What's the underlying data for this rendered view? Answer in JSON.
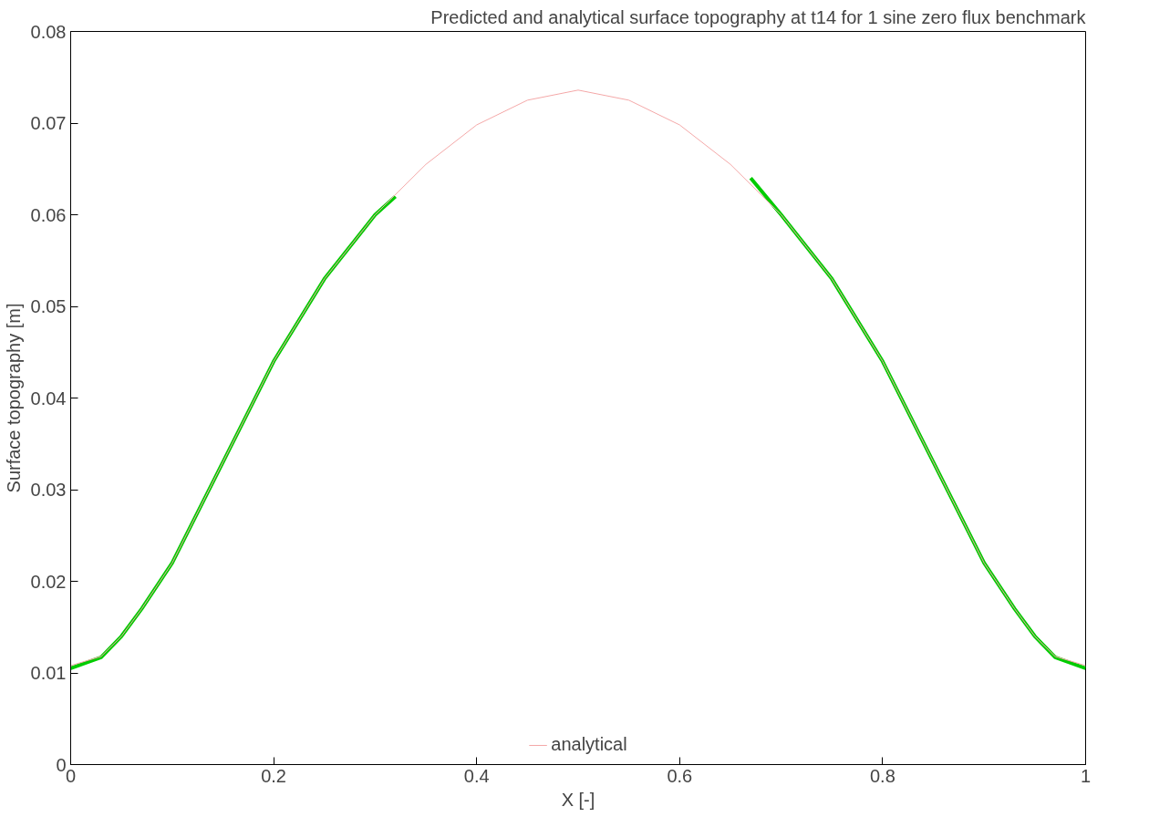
{
  "chart_data": {
    "type": "line",
    "title": "Predicted and analytical surface topography at t14 for 1 sine zero flux benchmark",
    "xlabel": "X [-]",
    "ylabel": "Surface topography [m]",
    "xlim": [
      0,
      1
    ],
    "ylim": [
      0,
      0.08
    ],
    "xticks": [
      0,
      0.2,
      0.4,
      0.6,
      0.8,
      1
    ],
    "yticks": [
      0,
      0.01,
      0.02,
      0.03,
      0.04,
      0.05,
      0.06,
      0.07,
      0.08
    ],
    "grid": false,
    "legend": "bottom",
    "marker": "none",
    "line_style": "solid",
    "series": [
      {
        "color": "#00cc00",
        "x": [
          0,
          0.03,
          0.05,
          0.07,
          0.1,
          0.15,
          0.2,
          0.25,
          0.3,
          0.32,
          0.35,
          0.4,
          0.45,
          0.5,
          0.55,
          0.6,
          0.65,
          0.67,
          0.7,
          0.75,
          0.8,
          0.85,
          0.9,
          0.93,
          0.95,
          0.97,
          1
        ],
        "values": [
          0.0105,
          0.0117,
          0.014,
          0.017,
          0.022,
          0.033,
          0.044,
          0.053,
          0.06,
          0.062,
          null,
          null,
          null,
          null,
          null,
          null,
          null,
          0.064,
          0.06,
          0.053,
          0.044,
          0.033,
          0.022,
          0.017,
          0.014,
          0.0117,
          0.0105
        ]
      },
      {
        "name": "analytical",
        "color": "#f4a8a8",
        "x": [
          0,
          0.03,
          0.05,
          0.07,
          0.1,
          0.15,
          0.2,
          0.25,
          0.3,
          0.35,
          0.4,
          0.45,
          0.5,
          0.55,
          0.6,
          0.65,
          0.7,
          0.75,
          0.8,
          0.85,
          0.9,
          0.93,
          0.95,
          0.97,
          1
        ],
        "values": [
          0.0108,
          0.0118,
          0.014,
          0.017,
          0.022,
          0.033,
          0.044,
          0.053,
          0.06,
          0.0655,
          0.0698,
          0.0725,
          0.0736,
          0.0725,
          0.0698,
          0.0655,
          0.06,
          0.053,
          0.044,
          0.033,
          0.022,
          0.017,
          0.014,
          0.0118,
          0.0108
        ]
      }
    ]
  }
}
